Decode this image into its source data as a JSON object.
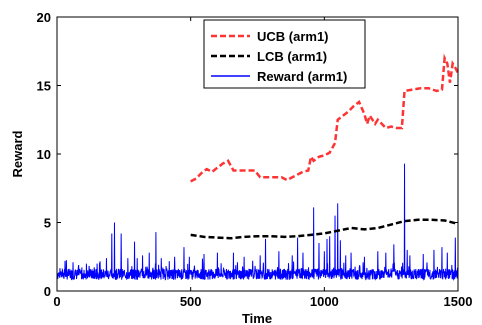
{
  "chart_data": {
    "type": "line",
    "title": "",
    "xlabel": "Time",
    "ylabel": "Reward",
    "xlim": [
      0,
      1500
    ],
    "ylim": [
      0,
      20
    ],
    "x_ticks": [
      0,
      500,
      1000,
      1500
    ],
    "y_ticks": [
      0,
      5,
      10,
      15,
      20
    ],
    "grid": false,
    "legend_position": "top-center",
    "series": [
      {
        "name": "UCB (arm1)",
        "color": "#ff3333",
        "style": "dashed",
        "points": [
          [
            500,
            8.0
          ],
          [
            520,
            8.2
          ],
          [
            540,
            8.6
          ],
          [
            560,
            8.9
          ],
          [
            580,
            8.7
          ],
          [
            600,
            9.0
          ],
          [
            620,
            9.3
          ],
          [
            640,
            9.5
          ],
          [
            660,
            8.8
          ],
          [
            700,
            8.8
          ],
          [
            740,
            8.8
          ],
          [
            760,
            8.3
          ],
          [
            800,
            8.3
          ],
          [
            840,
            8.3
          ],
          [
            860,
            8.1
          ],
          [
            880,
            8.3
          ],
          [
            900,
            8.5
          ],
          [
            920,
            8.7
          ],
          [
            940,
            8.8
          ],
          [
            950,
            9.8
          ],
          [
            960,
            9.5
          ],
          [
            980,
            9.8
          ],
          [
            1000,
            9.9
          ],
          [
            1020,
            10.1
          ],
          [
            1040,
            10.8
          ],
          [
            1050,
            12.5
          ],
          [
            1070,
            12.8
          ],
          [
            1090,
            13.1
          ],
          [
            1110,
            13.5
          ],
          [
            1130,
            13.8
          ],
          [
            1150,
            12.9
          ],
          [
            1160,
            12.2
          ],
          [
            1170,
            12.8
          ],
          [
            1190,
            12.2
          ],
          [
            1200,
            12.5
          ],
          [
            1230,
            11.9
          ],
          [
            1250,
            12.0
          ],
          [
            1270,
            11.9
          ],
          [
            1290,
            11.9
          ],
          [
            1300,
            14.6
          ],
          [
            1330,
            14.7
          ],
          [
            1360,
            14.8
          ],
          [
            1390,
            14.8
          ],
          [
            1420,
            14.6
          ],
          [
            1440,
            14.7
          ],
          [
            1450,
            17.0
          ],
          [
            1460,
            16.6
          ],
          [
            1470,
            15.2
          ],
          [
            1480,
            16.6
          ],
          [
            1490,
            16.3
          ],
          [
            1500,
            15.9
          ]
        ]
      },
      {
        "name": "LCB (arm1)",
        "color": "#000000",
        "style": "dashed",
        "points": [
          [
            500,
            4.1
          ],
          [
            550,
            3.95
          ],
          [
            600,
            3.9
          ],
          [
            650,
            3.85
          ],
          [
            700,
            3.95
          ],
          [
            750,
            4.0
          ],
          [
            800,
            4.0
          ],
          [
            850,
            3.95
          ],
          [
            900,
            4.0
          ],
          [
            950,
            4.1
          ],
          [
            1000,
            4.2
          ],
          [
            1050,
            4.4
          ],
          [
            1100,
            4.6
          ],
          [
            1150,
            4.5
          ],
          [
            1200,
            4.6
          ],
          [
            1250,
            4.85
          ],
          [
            1300,
            5.1
          ],
          [
            1350,
            5.2
          ],
          [
            1400,
            5.2
          ],
          [
            1450,
            5.15
          ],
          [
            1500,
            4.9
          ]
        ]
      },
      {
        "name": "Reward (arm1)",
        "color": "#0000ff",
        "style": "solid",
        "base": 1.1,
        "noise": 0.4,
        "count": 1500,
        "spikes": [
          [
            30,
            2.2
          ],
          [
            60,
            2.1
          ],
          [
            110,
            2.0
          ],
          [
            150,
            2.0
          ],
          [
            185,
            2.4
          ],
          [
            205,
            4.2
          ],
          [
            215,
            5.0
          ],
          [
            240,
            4.2
          ],
          [
            265,
            2.4
          ],
          [
            290,
            3.6
          ],
          [
            300,
            2.4
          ],
          [
            320,
            2.6
          ],
          [
            345,
            2.8
          ],
          [
            370,
            4.3
          ],
          [
            390,
            2.4
          ],
          [
            440,
            2.5
          ],
          [
            475,
            3.2
          ],
          [
            495,
            2.5
          ],
          [
            550,
            2.7
          ],
          [
            600,
            2.8
          ],
          [
            660,
            2.8
          ],
          [
            700,
            2.5
          ],
          [
            760,
            2.6
          ],
          [
            780,
            3.8
          ],
          [
            830,
            2.9
          ],
          [
            880,
            2.6
          ],
          [
            900,
            3.9
          ],
          [
            920,
            2.8
          ],
          [
            960,
            6.1
          ],
          [
            980,
            3.5
          ],
          [
            1000,
            2.9
          ],
          [
            1010,
            3.8
          ],
          [
            1020,
            4.0
          ],
          [
            1040,
            5.5
          ],
          [
            1050,
            6.4
          ],
          [
            1060,
            3.7
          ],
          [
            1080,
            2.6
          ],
          [
            1100,
            2.8
          ],
          [
            1150,
            2.5
          ],
          [
            1200,
            2.9
          ],
          [
            1230,
            2.8
          ],
          [
            1260,
            3.4
          ],
          [
            1300,
            9.3
          ],
          [
            1310,
            3.0
          ],
          [
            1320,
            2.6
          ],
          [
            1370,
            2.7
          ],
          [
            1410,
            3.0
          ],
          [
            1440,
            3.2
          ],
          [
            1460,
            2.8
          ],
          [
            1490,
            3.9
          ]
        ]
      }
    ]
  }
}
